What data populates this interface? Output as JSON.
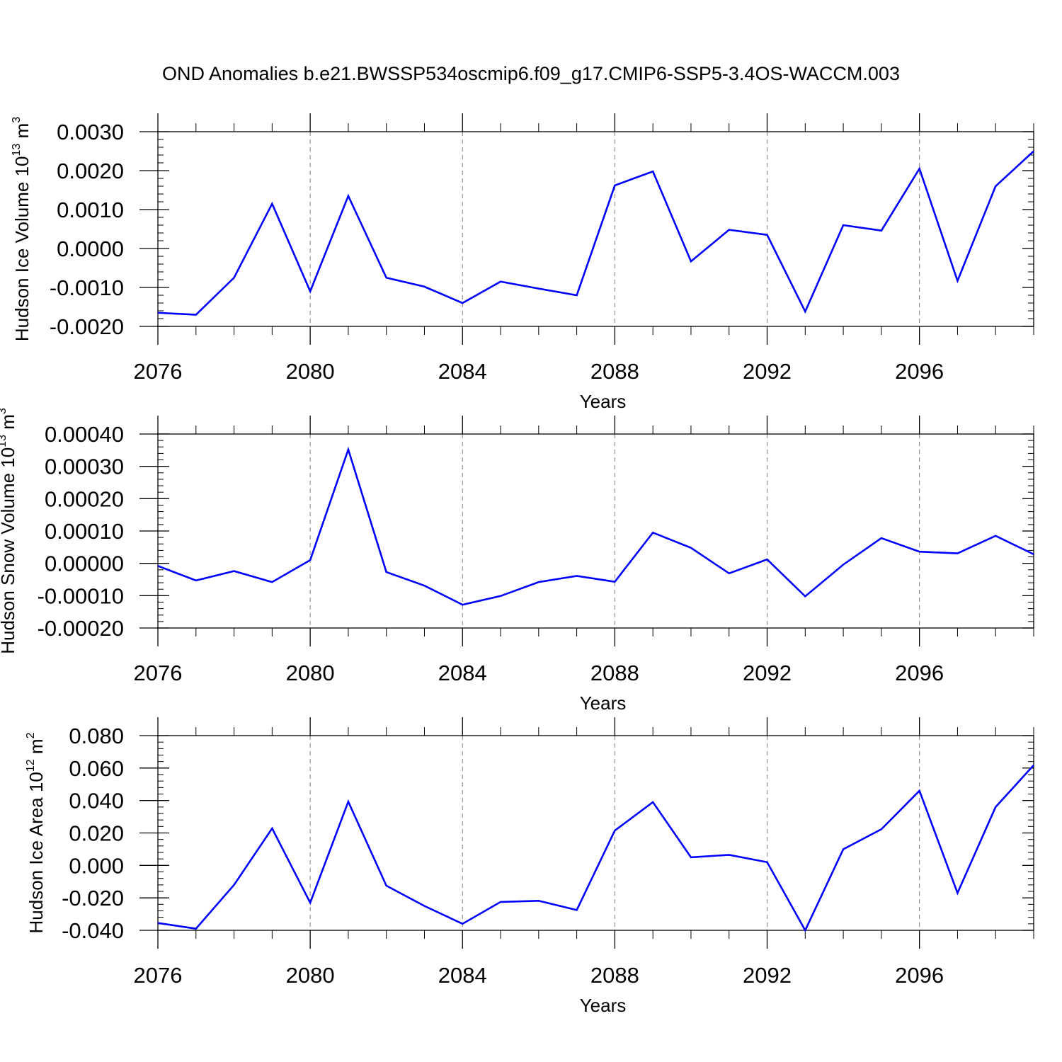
{
  "title": "OND Anomalies b.e21.BWSSP534oscmip6.f09_g17.CMIP6-SSP5-3.4OS-WACCM.003",
  "colors": {
    "line": "#0000ff",
    "axis": "#000000",
    "grid": "#7f7f7f"
  },
  "chart_data": [
    {
      "type": "line",
      "xlabel": "Years",
      "ylabel": "Hudson Ice Volume 10",
      "ylabel_exp": "13",
      "ylabel_unit": " m",
      "ylabel_unit_exp": "3",
      "xlim": [
        2076,
        2099
      ],
      "ylim": [
        -0.002,
        0.003
      ],
      "xticks": [
        "2076",
        "2080",
        "2084",
        "2088",
        "2092",
        "2096"
      ],
      "yticks": [
        "0.0030",
        "0.0020",
        "0.0010",
        "0.0000",
        "-0.0010",
        "-0.0020"
      ],
      "ytick_values": [
        0.003,
        0.002,
        0.001,
        0.0,
        -0.001,
        -0.002
      ],
      "x": [
        2076,
        2077,
        2078,
        2079,
        2080,
        2081,
        2082,
        2083,
        2084,
        2085,
        2086,
        2087,
        2088,
        2089,
        2090,
        2091,
        2092,
        2093,
        2094,
        2095,
        2096,
        2097,
        2098,
        2099
      ],
      "values": [
        -0.00165,
        -0.0017,
        -0.00075,
        0.00115,
        -0.0011,
        0.00135,
        -0.00075,
        -0.00098,
        -0.0014,
        -0.00085,
        -0.00103,
        -0.0012,
        0.00162,
        0.00198,
        -0.00033,
        0.00048,
        0.00035,
        -0.00162,
        0.0006,
        0.00046,
        0.00205,
        -0.00083,
        0.0016,
        0.0025
      ]
    },
    {
      "type": "line",
      "xlabel": "Years",
      "ylabel": "Hudson Snow Volume 10",
      "ylabel_exp": "13",
      "ylabel_unit": " m",
      "ylabel_unit_exp": "3",
      "xlim": [
        2076,
        2099
      ],
      "ylim": [
        -0.0002,
        0.0004
      ],
      "xticks": [
        "2076",
        "2080",
        "2084",
        "2088",
        "2092",
        "2096"
      ],
      "yticks": [
        "0.00040",
        "0.00030",
        "0.00020",
        "0.00010",
        "0.00000",
        "-0.00010",
        "-0.00020"
      ],
      "ytick_values": [
        0.0004,
        0.0003,
        0.0002,
        0.0001,
        0.0,
        -0.0001,
        -0.0002
      ],
      "x": [
        2076,
        2077,
        2078,
        2079,
        2080,
        2081,
        2082,
        2083,
        2084,
        2085,
        2086,
        2087,
        2088,
        2089,
        2090,
        2091,
        2092,
        2093,
        2094,
        2095,
        2096,
        2097,
        2098,
        2099
      ],
      "values": [
        -8e-06,
        -5.3e-05,
        -2.4e-05,
        -5.8e-05,
        1e-05,
        0.000352,
        -2.7e-05,
        -6.9e-05,
        -0.000128,
        -0.000101,
        -5.8e-05,
        -3.9e-05,
        -5.7e-05,
        9.5e-05,
        4.8e-05,
        -3.1e-05,
        1.2e-05,
        -0.000102,
        -4e-06,
        7.8e-05,
        3.6e-05,
        3.1e-05,
        8.5e-05,
        2.8e-05
      ]
    },
    {
      "type": "line",
      "xlabel": "Years",
      "ylabel": "Hudson Ice Area 10",
      "ylabel_exp": "12",
      "ylabel_unit": " m",
      "ylabel_unit_exp": "2",
      "xlim": [
        2076,
        2099
      ],
      "ylim": [
        -0.04,
        0.08
      ],
      "xticks": [
        "2076",
        "2080",
        "2084",
        "2088",
        "2092",
        "2096"
      ],
      "yticks": [
        "0.080",
        "0.060",
        "0.040",
        "0.020",
        "0.000",
        "-0.020",
        "-0.040"
      ],
      "ytick_values": [
        0.08,
        0.06,
        0.04,
        0.02,
        0.0,
        -0.02,
        -0.04
      ],
      "x": [
        2076,
        2077,
        2078,
        2079,
        2080,
        2081,
        2082,
        2083,
        2084,
        2085,
        2086,
        2087,
        2088,
        2089,
        2090,
        2091,
        2092,
        2093,
        2094,
        2095,
        2096,
        2097,
        2098,
        2099
      ],
      "values": [
        -0.0355,
        -0.039,
        -0.012,
        0.0228,
        -0.023,
        0.0393,
        -0.0125,
        -0.025,
        -0.036,
        -0.0225,
        -0.0218,
        -0.0275,
        0.0215,
        0.039,
        0.005,
        0.0065,
        0.002,
        -0.04,
        0.01,
        0.0223,
        0.046,
        -0.017,
        0.036,
        0.0618
      ]
    }
  ]
}
